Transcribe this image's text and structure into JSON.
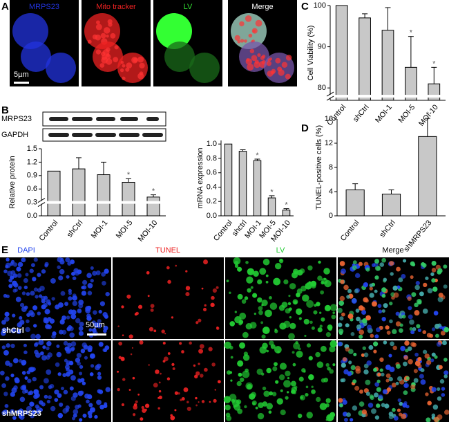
{
  "panels": [
    "A",
    "B",
    "C",
    "D",
    "E"
  ],
  "panel_a": {
    "channels": [
      "MRPS23",
      "Mito tracker",
      "LV",
      "Merge"
    ],
    "scale_bar": "5µm"
  },
  "blot": {
    "proteins": [
      "MRPS23",
      "GAPDH"
    ]
  },
  "panel_e": {
    "channels": [
      "DAPI",
      "TUNEL",
      "LV",
      "Merge"
    ],
    "rows": [
      "shCtrl",
      "shMRPS23"
    ],
    "scale_bar": "50µm"
  },
  "chart_data": [
    {
      "type": "bar",
      "ylabel": "Relative protein",
      "categories": [
        "Control",
        "shCtrl",
        "MOI-1",
        "MOI-5",
        "MOI-10"
      ],
      "values": [
        1.0,
        1.05,
        0.92,
        0.75,
        0.42
      ],
      "errors": [
        0,
        0.25,
        0.28,
        0.08,
        0.05
      ],
      "annotations": [
        null,
        null,
        null,
        "*",
        "*"
      ],
      "color": "#c8c8c8",
      "ylim": [
        0,
        1.5
      ],
      "yticks": [
        {
          "value": 0,
          "label": "0.0"
        },
        0.3,
        0.6,
        0.9,
        1.2,
        1.5
      ],
      "axis_break": 0.3
    },
    {
      "type": "bar",
      "ylabel": "mRNA expression",
      "categories": [
        "Control",
        "shctrl",
        "MOI-1",
        "MOI-5",
        "MOI-10"
      ],
      "values": [
        1.0,
        0.9,
        0.77,
        0.25,
        0.08
      ],
      "errors": [
        0,
        0.02,
        0.02,
        0.03,
        0.02
      ],
      "annotations": [
        null,
        null,
        "*",
        "*",
        "*"
      ],
      "color": "#c8c8c8",
      "ylim": [
        0,
        1.05
      ],
      "yticks": [
        {
          "value": 0,
          "label": "0.0"
        },
        0.2,
        0.4,
        0.6,
        0.8,
        {
          "value": 1,
          "label": "1.0"
        }
      ]
    },
    {
      "type": "bar",
      "ylabel": "Cell Viability (%)",
      "categories": [
        "Control",
        "shCtrl",
        "MOI-1",
        "MOI-5",
        "MOI-10"
      ],
      "values": [
        100,
        97,
        94,
        85,
        81
      ],
      "errors": [
        0,
        1,
        5.5,
        7.5,
        4
      ],
      "annotations": [
        null,
        null,
        null,
        "*",
        "*"
      ],
      "color": "#c8c8c8",
      "ylim": [
        77,
        100
      ],
      "yticks": [
        80,
        90,
        100
      ],
      "axis_break": 78
    },
    {
      "type": "bar",
      "ylabel": "TUNEL-positive cells (%)",
      "categories": [
        "Control",
        "shCtrl",
        "shMRPS23"
      ],
      "values": [
        4.3,
        3.6,
        13.1
      ],
      "errors": [
        1,
        0.7,
        3
      ],
      "annotations": [
        null,
        null,
        "*"
      ],
      "color": "#c8c8c8",
      "ylim": [
        0,
        16
      ],
      "yticks": [
        0,
        4,
        8,
        12,
        16
      ]
    }
  ]
}
